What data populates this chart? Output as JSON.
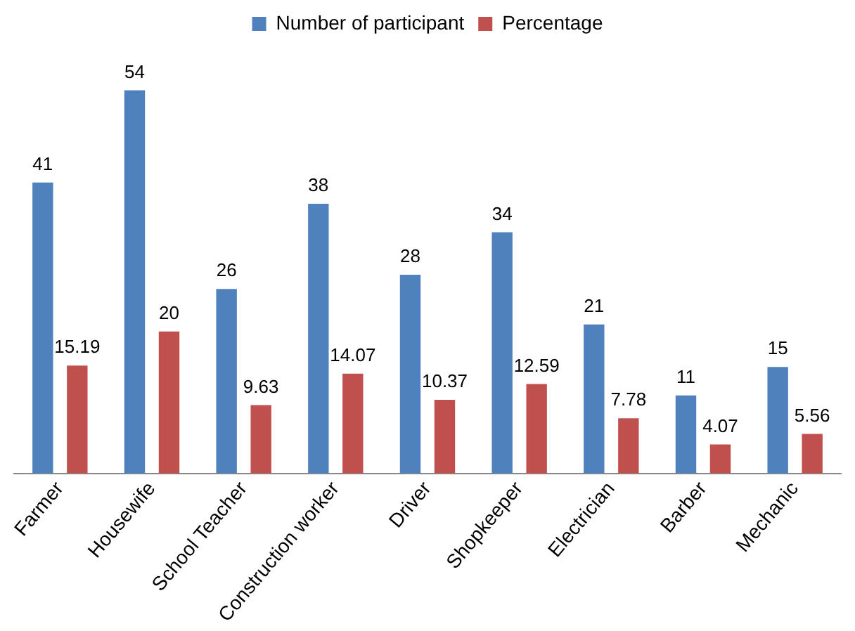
{
  "chart_data": {
    "type": "bar",
    "categories": [
      "Farmer",
      "Housewife",
      "School Teacher",
      "Construction worker",
      "Driver",
      "Shopkeeper",
      "Electrician",
      "Barber",
      "Mechanic"
    ],
    "series": [
      {
        "name": "Number of participant",
        "color": "#4f81bd",
        "values": [
          41,
          54,
          26,
          38,
          28,
          34,
          21,
          11,
          15
        ]
      },
      {
        "name": "Percentage",
        "color": "#c0504d",
        "values": [
          15.19,
          20,
          9.63,
          14.07,
          10.37,
          12.59,
          7.78,
          4.07,
          5.56
        ]
      }
    ],
    "tick_labels": "x",
    "grid": false,
    "legend": "top",
    "data_labels": true
  }
}
